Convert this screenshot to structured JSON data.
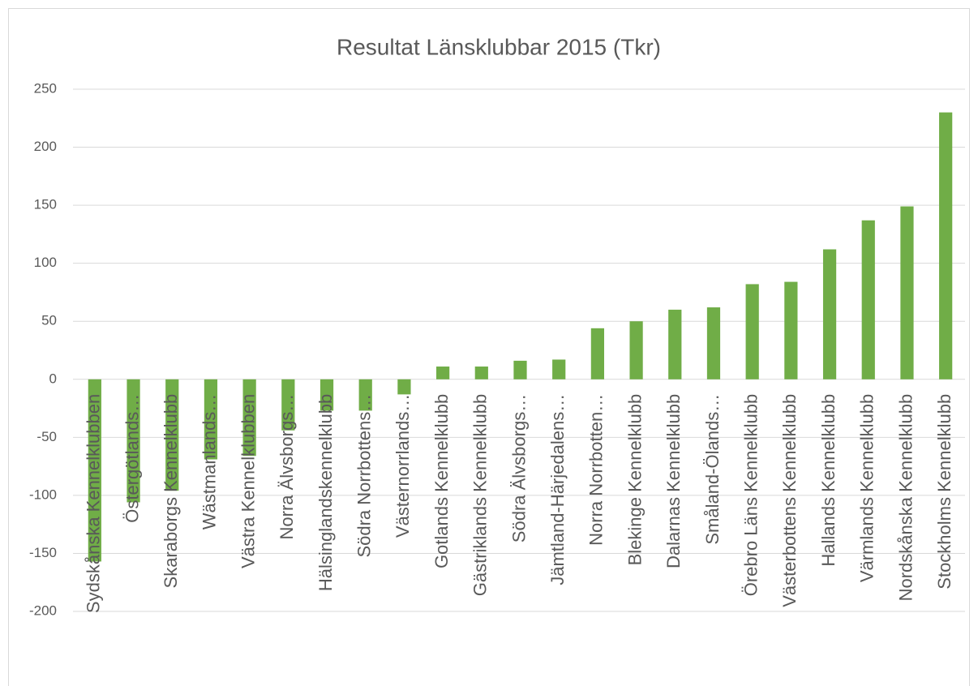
{
  "chart_data": {
    "type": "bar",
    "title": "Resultat Länsklubbar 2015 (Tkr)",
    "categories": [
      "Sydskånska Kennelklubben",
      "Östergötlands…",
      "Skaraborgs Kennelklubb",
      "Wästmanlands…",
      "Västra Kennelklubben",
      "Norra Älvsborgs…",
      "Hälsinglandskennelklubb",
      "Södra Norrbottens…",
      "Västernorrlands…",
      "Gotlands Kennelklubb",
      "Gästriklands Kennelklubb",
      "Södra Älvsborgs…",
      "Jämtland-Härjedalens…",
      "Norra Norrbotten…",
      "Blekinge Kennelklubb",
      "Dalarnas Kennelklubb",
      "Småland-Ölands…",
      "Örebro Läns Kennelklubb",
      "Västerbottens Kennelklubb",
      "Hallands Kennelklubb",
      "Värmlands Kennelklubb",
      "Nordskånska Kennelklubb",
      "Stockholms Kennelklubb"
    ],
    "values": [
      -157,
      -106,
      -96,
      -69,
      -66,
      -44,
      -27,
      -27,
      -13,
      11,
      11,
      16,
      17,
      44,
      50,
      60,
      62,
      82,
      84,
      112,
      137,
      149,
      230
    ],
    "color": "#70ad47",
    "ylim": [
      -200,
      250
    ],
    "yticks": [
      -200,
      -150,
      -100,
      -50,
      0,
      50,
      100,
      150,
      200,
      250
    ],
    "grid": true
  }
}
